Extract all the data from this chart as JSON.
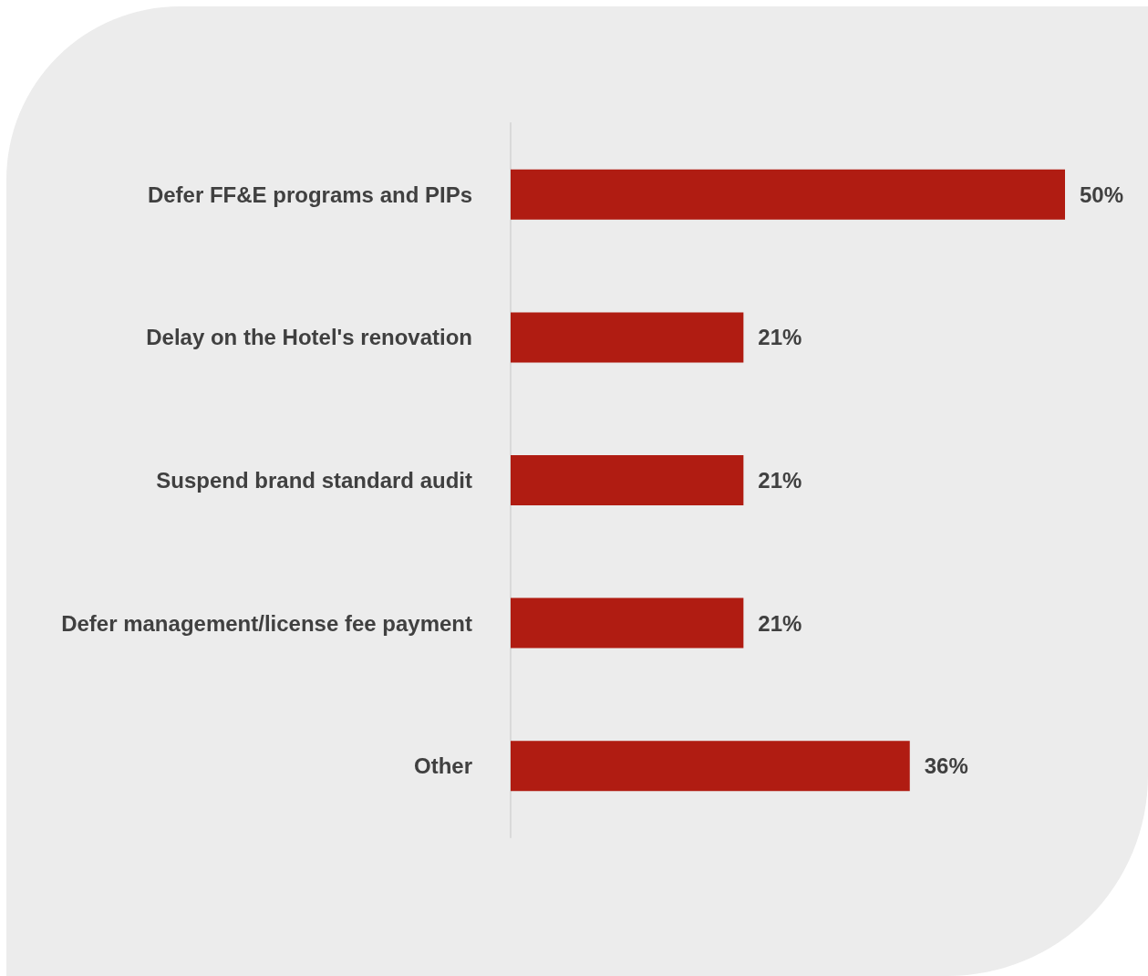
{
  "chart_data": {
    "type": "bar",
    "orientation": "horizontal",
    "categories": [
      "Defer FF&E programs and PIPs",
      "Delay on the Hotel's renovation",
      "Suspend brand standard audit",
      "Defer management/license fee payment",
      "Other"
    ],
    "values": [
      50,
      21,
      21,
      21,
      36
    ],
    "value_labels": [
      "50%",
      "21%",
      "21%",
      "21%",
      "36%"
    ],
    "color": "#b01c12"
  }
}
